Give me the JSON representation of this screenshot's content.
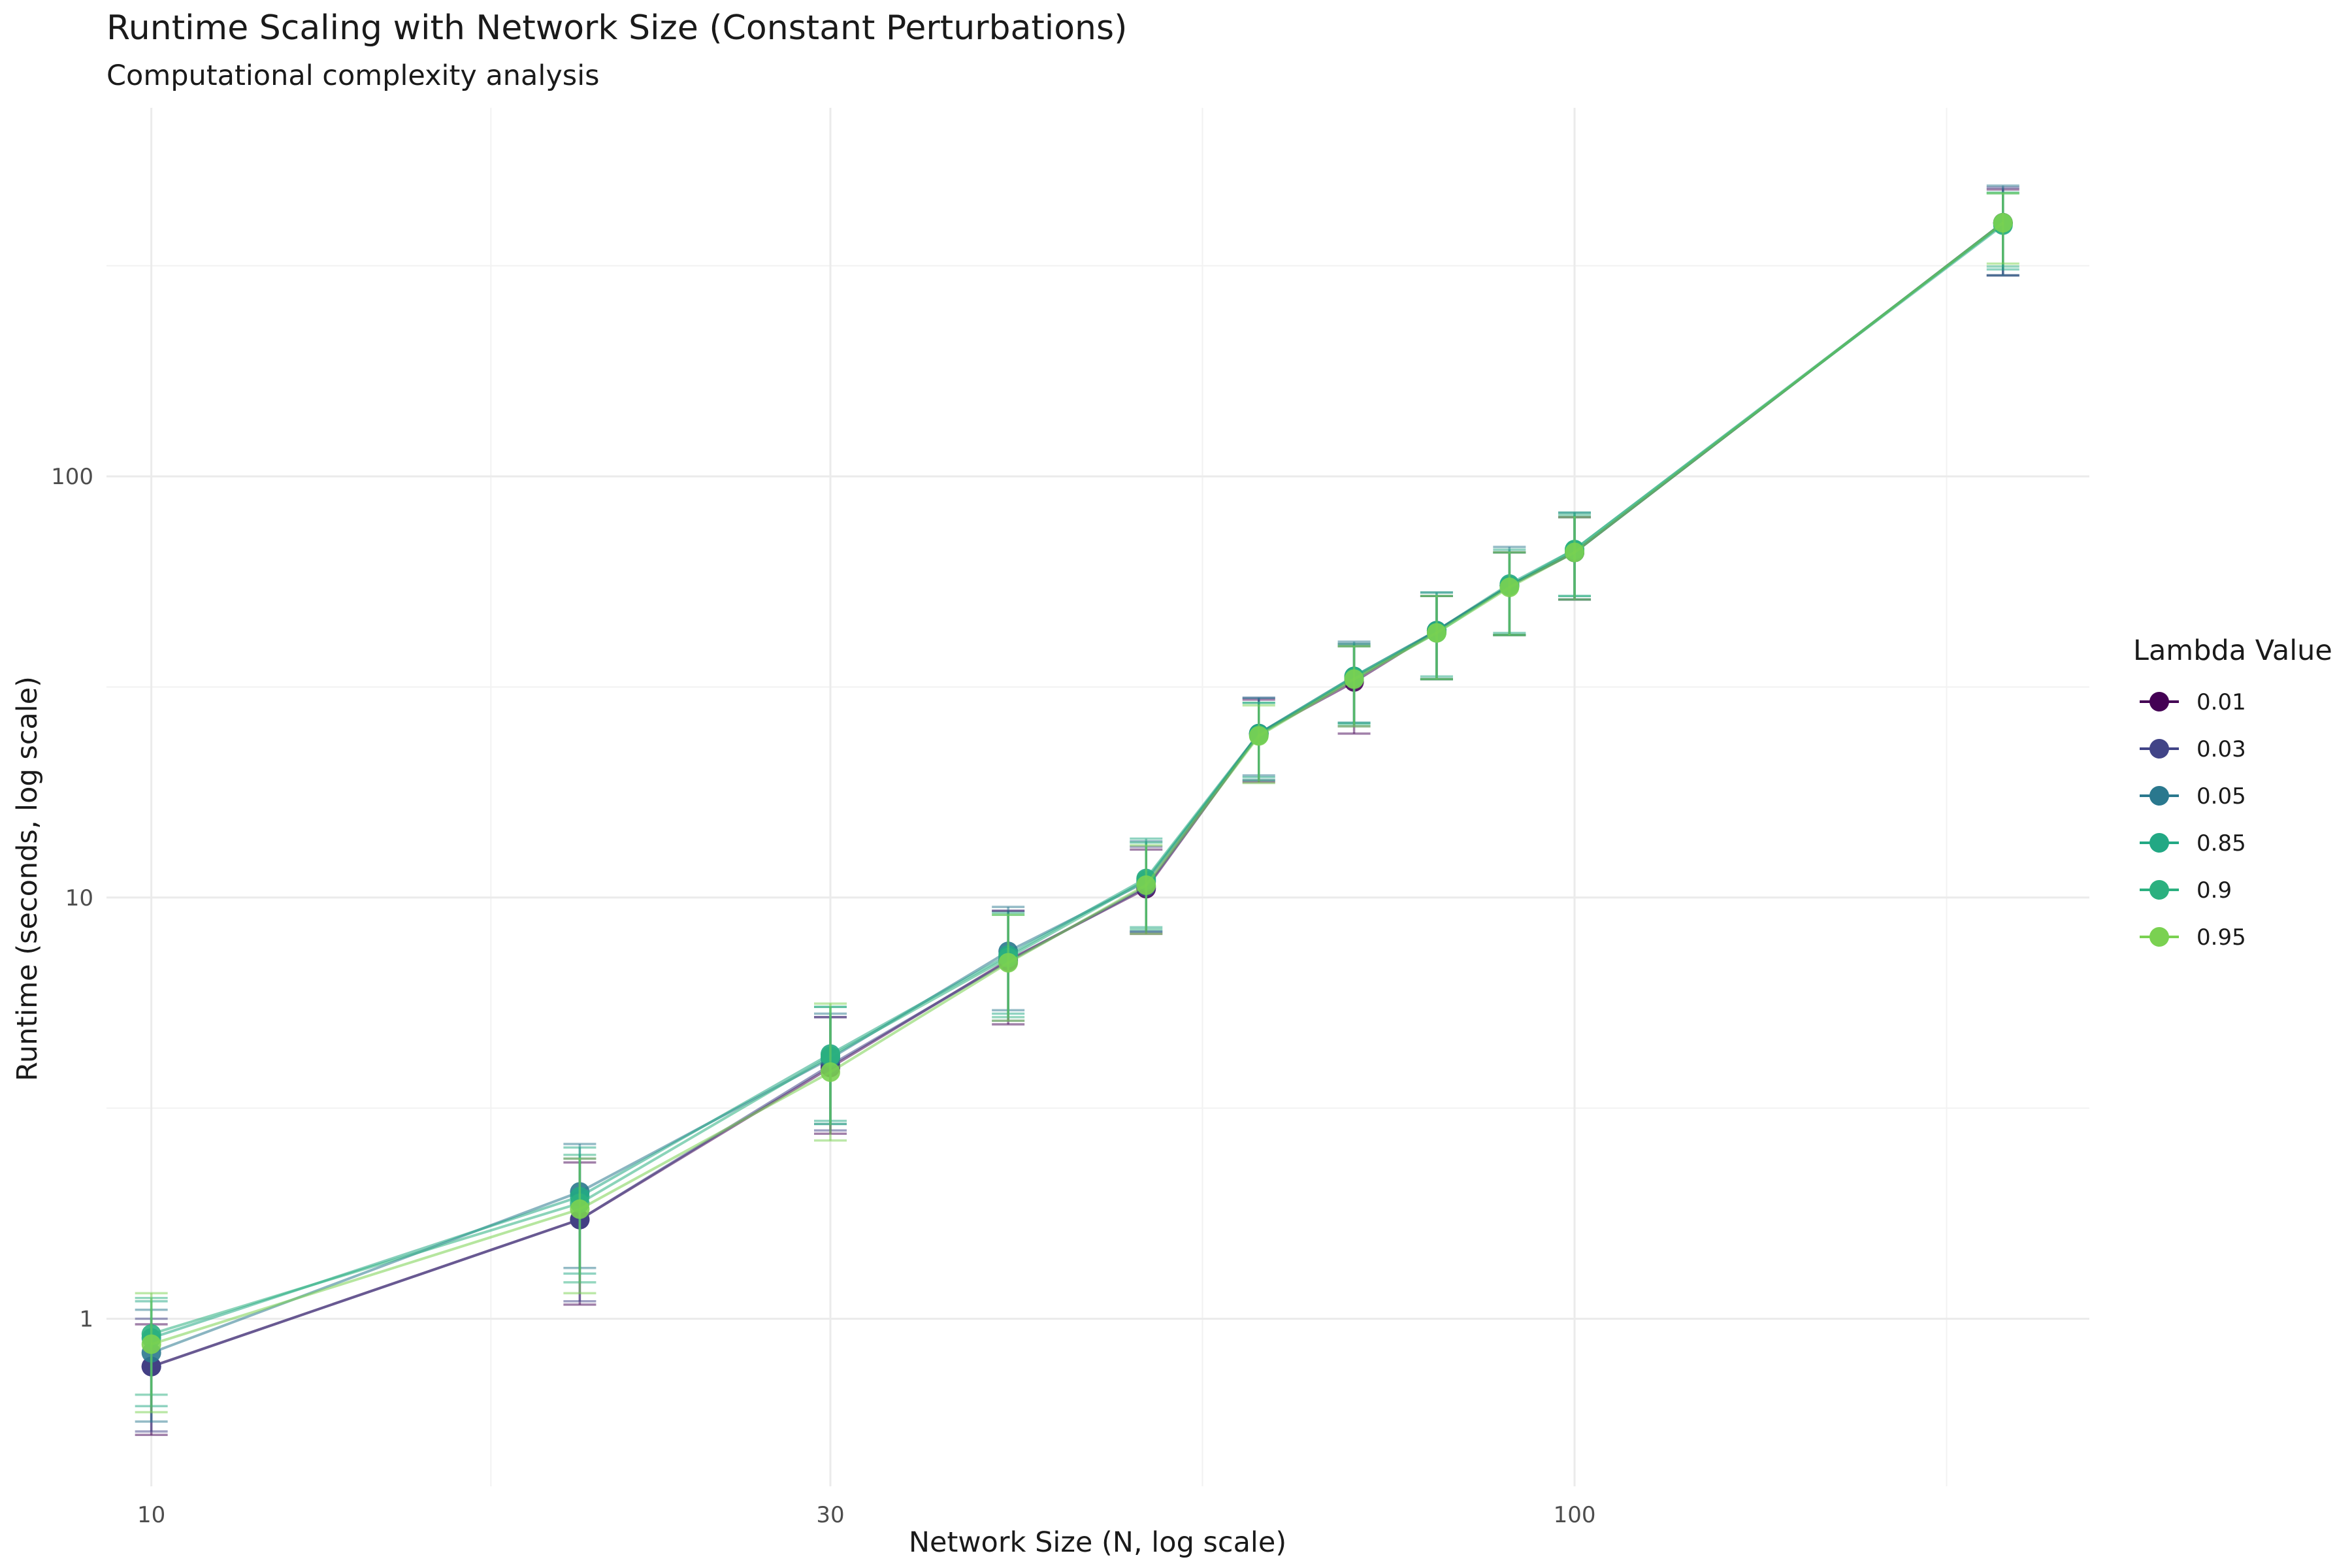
{
  "chart_data": {
    "type": "line",
    "title": "Runtime Scaling with Network Size (Constant Perturbations)",
    "subtitle": "Computational complexity analysis",
    "xlabel": "Network Size (N, log scale)",
    "ylabel": "Runtime (seconds, log scale)",
    "x_scale": "log",
    "y_scale": "log",
    "xlim": [
      9.3,
      230
    ],
    "ylim": [
      0.4,
      750
    ],
    "x_ticks": [
      10,
      30,
      100
    ],
    "x_tick_labels": [
      "10",
      "30",
      "100"
    ],
    "y_ticks": [
      1,
      10,
      100
    ],
    "y_tick_labels": [
      "1",
      "10",
      "100"
    ],
    "grid": true,
    "legend": {
      "title": "Lambda Value",
      "position": "right"
    },
    "x": [
      10,
      20,
      30,
      40,
      50,
      60,
      70,
      80,
      90,
      100,
      200
    ],
    "series": [
      {
        "name": "0.01",
        "color": "#440154",
        "y": [
          0.77,
          1.72,
          3.95,
          7.1,
          10.5,
          24.5,
          32.5,
          43,
          55,
          66,
          400
        ],
        "lower": [
          0.53,
          1.08,
          2.75,
          5.0,
          8.2,
          18.8,
          24.5,
          33,
          42,
          51,
          300
        ],
        "upper": [
          0.97,
          2.35,
          5.2,
          9.3,
          13.0,
          29.5,
          39.5,
          52,
          66,
          80,
          480
        ]
      },
      {
        "name": "0.03",
        "color": "#414487",
        "y": [
          0.77,
          1.72,
          4.0,
          7.05,
          10.6,
          24.5,
          33,
          43,
          55,
          66,
          400
        ],
        "lower": [
          0.54,
          1.1,
          2.8,
          5.1,
          8.3,
          19,
          25.5,
          33,
          42,
          51,
          300
        ],
        "upper": [
          1.0,
          2.4,
          5.2,
          9.3,
          13.2,
          29.8,
          40,
          52,
          66,
          80,
          485
        ]
      },
      {
        "name": "0.05",
        "color": "#2A788E",
        "y": [
          0.83,
          2.0,
          4.15,
          7.45,
          10.9,
          24.5,
          33.5,
          43,
          55,
          66,
          400
        ],
        "lower": [
          0.57,
          1.32,
          2.9,
          5.4,
          8.3,
          19.5,
          26,
          33,
          42,
          51,
          300
        ],
        "upper": [
          1.05,
          2.6,
          5.3,
          9.5,
          13.6,
          29.8,
          40.5,
          53,
          68,
          82,
          490
        ]
      },
      {
        "name": "0.85",
        "color": "#22A884",
        "y": [
          0.9,
          1.95,
          4.25,
          7.3,
          11.1,
          24.5,
          33.5,
          43,
          55.5,
          67,
          395
        ],
        "lower": [
          0.62,
          1.28,
          2.95,
          5.3,
          8.5,
          19.3,
          26,
          33.5,
          42.5,
          52,
          310
        ],
        "upper": [
          1.1,
          2.55,
          5.5,
          9.2,
          13.8,
          29,
          40,
          53,
          67,
          82,
          470
        ]
      },
      {
        "name": "0.9",
        "color": "#2BB07F",
        "y": [
          0.92,
          1.88,
          4.2,
          7.2,
          11.0,
          24.3,
          33.3,
          42.5,
          55,
          67,
          398
        ],
        "lower": [
          0.66,
          1.22,
          2.9,
          5.2,
          8.4,
          19,
          25.8,
          33,
          42,
          52,
          315
        ],
        "upper": [
          1.12,
          2.45,
          5.5,
          9.1,
          13.5,
          29,
          39.5,
          52,
          66,
          81,
          472
        ]
      },
      {
        "name": "0.95",
        "color": "#7AD151",
        "y": [
          0.87,
          1.82,
          3.85,
          7.0,
          10.7,
          24.2,
          33,
          42.5,
          54.5,
          66,
          400
        ],
        "lower": [
          0.6,
          1.15,
          2.65,
          5.1,
          8.2,
          18.7,
          25.5,
          33,
          42,
          51,
          320
        ],
        "upper": [
          1.15,
          2.4,
          5.6,
          9.1,
          13.3,
          28.6,
          39.5,
          52,
          66,
          80,
          470
        ]
      }
    ]
  }
}
